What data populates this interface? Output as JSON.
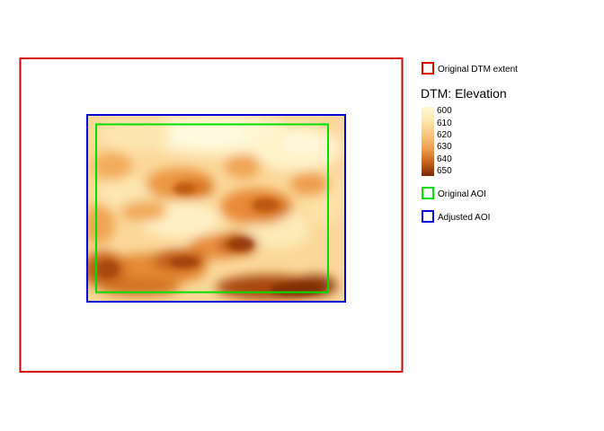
{
  "map": {
    "raster_layer": "DTM: Elevation",
    "color_ramp": [
      "#fff6cf",
      "#fde3a3",
      "#f9bf72",
      "#ef9a45",
      "#d66c1f",
      "#a7440c",
      "#7a2a04"
    ],
    "extents": [
      {
        "id": "original-dtm-extent",
        "color": "#d40000"
      },
      {
        "id": "adjusted-aoi",
        "color": "#0000e0"
      },
      {
        "id": "original-aoi",
        "color": "#00e000"
      }
    ]
  },
  "legend": {
    "items": [
      {
        "label": "Original DTM extent",
        "color": "#d40000"
      },
      {
        "label": "Original AOI",
        "color": "#00e000"
      },
      {
        "label": "Adjusted AOI",
        "color": "#0000e0"
      }
    ],
    "elevation": {
      "title": "DTM: Elevation",
      "ticks": [
        "600",
        "610",
        "620",
        "630",
        "640",
        "650"
      ]
    }
  }
}
